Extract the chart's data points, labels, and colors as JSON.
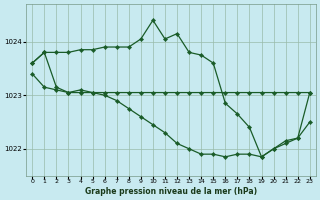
{
  "title": "Graphe pression niveau de la mer (hPa)",
  "bg_color": "#c8eaf0",
  "line_color": "#1a5c28",
  "grid_color": "#99bbaa",
  "xlim": [
    -0.5,
    23.5
  ],
  "ylim": [
    1021.5,
    1024.7
  ],
  "yticks": [
    1022,
    1023,
    1024
  ],
  "xticks": [
    0,
    1,
    2,
    3,
    4,
    5,
    6,
    7,
    8,
    9,
    10,
    11,
    12,
    13,
    14,
    15,
    16,
    17,
    18,
    19,
    20,
    21,
    22,
    23
  ],
  "series1_x": [
    0,
    1,
    2,
    3,
    4,
    5,
    6,
    7,
    8,
    9,
    10,
    11,
    12,
    13,
    14,
    15,
    16,
    17,
    18,
    19,
    20,
    21,
    22,
    23
  ],
  "series1_y": [
    1023.6,
    1023.8,
    1023.8,
    1023.8,
    1023.85,
    1023.85,
    1023.9,
    1023.9,
    1023.9,
    1024.05,
    1024.4,
    1024.05,
    1024.15,
    1023.8,
    1023.75,
    1023.6,
    1022.85,
    1022.65,
    1022.4,
    1021.85,
    1022.0,
    1022.15,
    1022.2,
    1023.05
  ],
  "series2_x": [
    0,
    1,
    2,
    3,
    4,
    5,
    6,
    7,
    8,
    9,
    10,
    11,
    12,
    13,
    14,
    15,
    16,
    17,
    18,
    19,
    20,
    21,
    22,
    23
  ],
  "series2_y": [
    1023.6,
    1023.8,
    1023.15,
    1023.05,
    1023.1,
    1023.05,
    1023.05,
    1023.05,
    1023.05,
    1023.05,
    1023.05,
    1023.05,
    1023.05,
    1023.05,
    1023.05,
    1023.05,
    1023.05,
    1023.05,
    1023.05,
    1023.05,
    1023.05,
    1023.05,
    1023.05,
    1023.05
  ],
  "series3_x": [
    0,
    1,
    2,
    3,
    4,
    5,
    6,
    7,
    8,
    9,
    10,
    11,
    12,
    13,
    14,
    15,
    16,
    17,
    18,
    19,
    20,
    21,
    22,
    23
  ],
  "series3_y": [
    1023.4,
    1023.15,
    1023.1,
    1023.05,
    1023.05,
    1023.05,
    1023.0,
    1022.9,
    1022.75,
    1022.6,
    1022.45,
    1022.3,
    1022.1,
    1022.0,
    1021.9,
    1021.9,
    1021.85,
    1021.9,
    1021.9,
    1021.85,
    1022.0,
    1022.1,
    1022.2,
    1022.5
  ]
}
